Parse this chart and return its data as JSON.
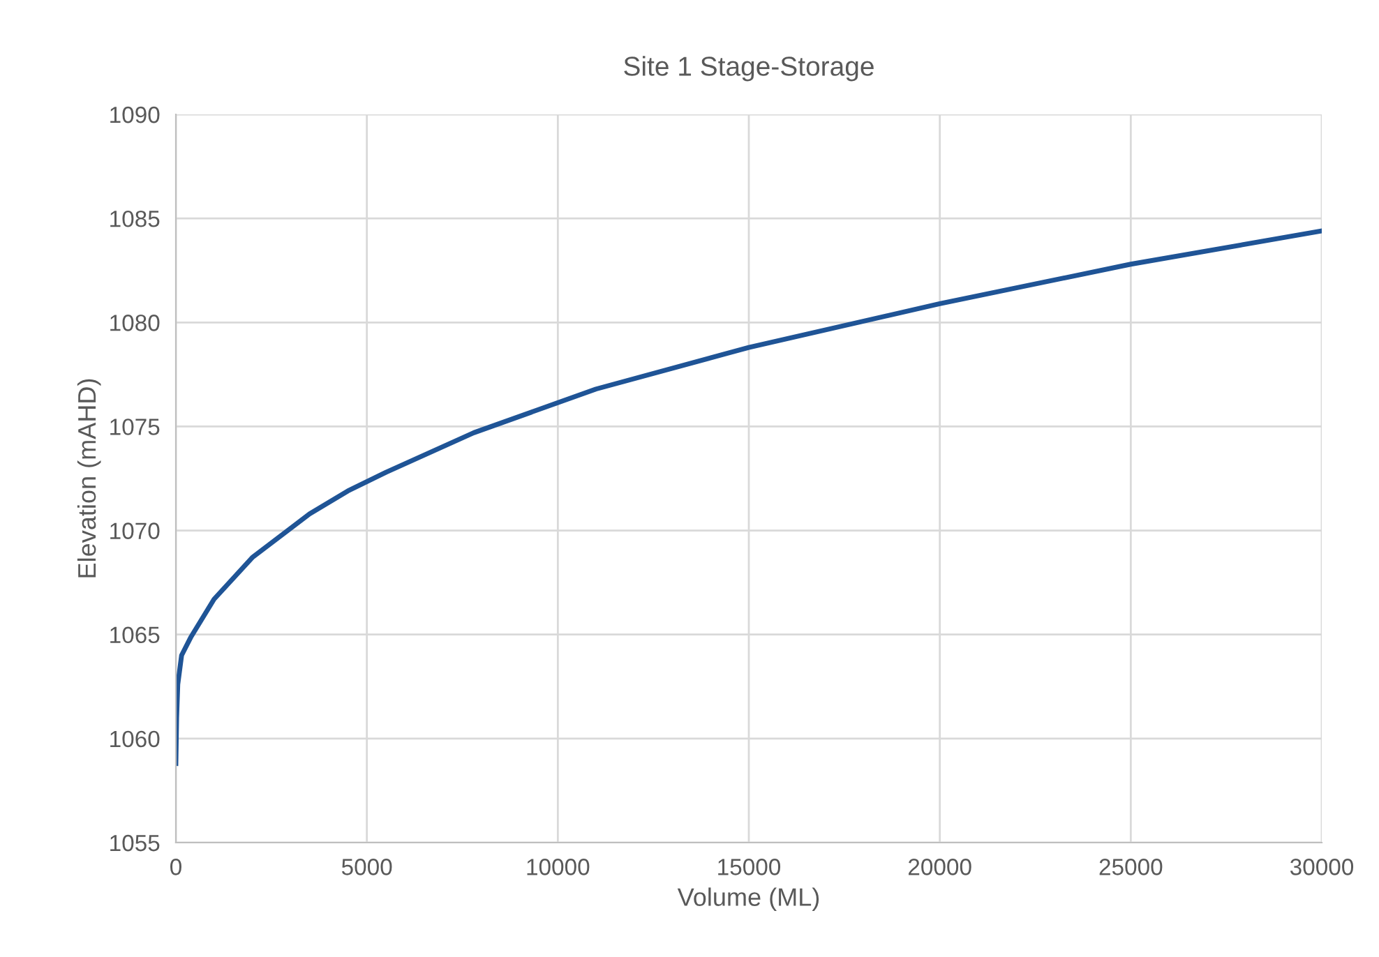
{
  "chart_data": {
    "type": "line",
    "title": "Site 1 Stage-Storage",
    "xlabel": "Volume (ML)",
    "ylabel": "Elevation (mAHD)",
    "xlim": [
      0,
      30000
    ],
    "xticks": [
      0,
      5000,
      10000,
      15000,
      20000,
      25000,
      30000
    ],
    "ylim": [
      1055,
      1090
    ],
    "yticks": [
      1055,
      1060,
      1065,
      1070,
      1075,
      1080,
      1085,
      1090
    ],
    "grid": true,
    "x": [
      0,
      20,
      50,
      150,
      400,
      1000,
      2000,
      3500,
      4500,
      5500,
      7800,
      11000,
      15000,
      20000,
      25000,
      30000
    ],
    "series": [
      {
        "color": "#1f5496",
        "values": [
          1058.8,
          1061,
          1062.6,
          1064,
          1064.9,
          1066.7,
          1068.7,
          1070.8,
          1071.9,
          1072.8,
          1074.7,
          1076.8,
          1078.8,
          1080.9,
          1082.8,
          1084.4
        ]
      }
    ]
  }
}
